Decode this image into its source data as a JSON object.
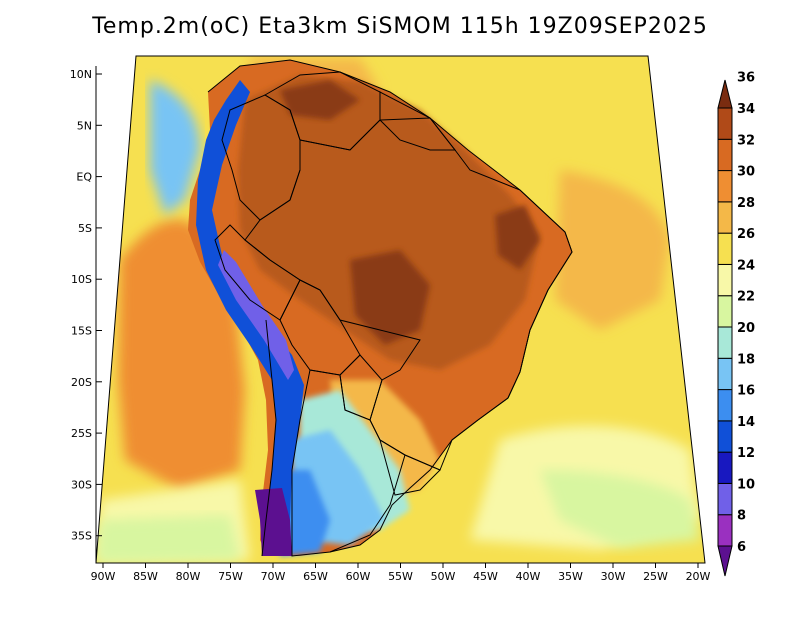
{
  "title": "Temp.2m(oC) Eta3km SiSMOM 115h 19Z09SEP2025",
  "map": {
    "lon_range": [
      -91,
      -20
    ],
    "lat_range": [
      -38,
      11
    ],
    "lat_ticks": [
      {
        "value": 10,
        "label": "10N"
      },
      {
        "value": 5,
        "label": "5N"
      },
      {
        "value": 0,
        "label": "EQ"
      },
      {
        "value": -5,
        "label": "5S"
      },
      {
        "value": -10,
        "label": "10S"
      },
      {
        "value": -15,
        "label": "15S"
      },
      {
        "value": -20,
        "label": "20S"
      },
      {
        "value": -25,
        "label": "25S"
      },
      {
        "value": -30,
        "label": "30S"
      },
      {
        "value": -35,
        "label": "35S"
      }
    ],
    "lon_ticks": [
      {
        "value": -90,
        "label": "90W"
      },
      {
        "value": -85,
        "label": "85W"
      },
      {
        "value": -80,
        "label": "80W"
      },
      {
        "value": -75,
        "label": "75W"
      },
      {
        "value": -70,
        "label": "70W"
      },
      {
        "value": -65,
        "label": "65W"
      },
      {
        "value": -60,
        "label": "60W"
      },
      {
        "value": -55,
        "label": "55W"
      },
      {
        "value": -50,
        "label": "50W"
      },
      {
        "value": -45,
        "label": "45W"
      },
      {
        "value": -40,
        "label": "40W"
      },
      {
        "value": -35,
        "label": "35W"
      },
      {
        "value": -30,
        "label": "30W"
      },
      {
        "value": -25,
        "label": "25W"
      },
      {
        "value": -20,
        "label": "20W"
      }
    ]
  },
  "colorbar": {
    "labels": [
      "6",
      "8",
      "10",
      "12",
      "14",
      "16",
      "18",
      "20",
      "22",
      "24",
      "26",
      "28",
      "30",
      "32",
      "34",
      "36"
    ],
    "colors": [
      "#5c1090",
      "#9a30c0",
      "#7060e8",
      "#1818c0",
      "#1050d8",
      "#3c8ef0",
      "#78c4f4",
      "#a8e8d8",
      "#d8f6a0",
      "#f8f8a8",
      "#f6e050",
      "#f4b848",
      "#ef8e32",
      "#d86a22",
      "#b04a18",
      "#7a2c10"
    ]
  },
  "palette": {
    "ocean_warm": "#f4b848",
    "ocean_hot": "#ef8e32",
    "ocean_mild": "#f6e050",
    "ocean_cool": "#f8f8a8",
    "land_hot": "#b85a1a",
    "land_very_hot": "#8a3a12",
    "land_mid": "#d86a22",
    "land_cool": "#78c4f4",
    "andes_cold": "#3c4cd8",
    "andes_coldest": "#5c1090",
    "border": "#000000"
  }
}
